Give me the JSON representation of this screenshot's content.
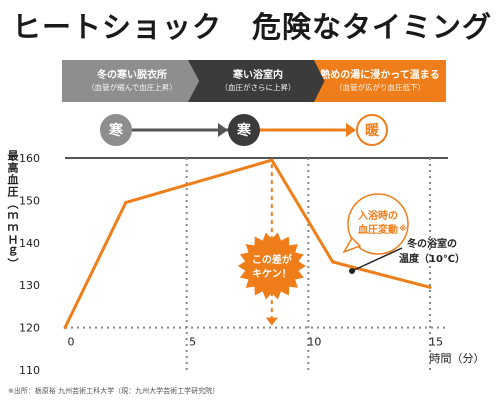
{
  "title": {
    "part1": "ヒートショック",
    "part2": "危険なタイミング"
  },
  "stages": [
    {
      "label": "冬の寒い脱衣所",
      "sub": "（血管が縮んで血圧上昇）",
      "temp_word": "寒",
      "color": "#8e8e8e"
    },
    {
      "label": "寒い浴室内",
      "sub": "（血圧がさらに上昇）",
      "temp_word": "寒",
      "color": "#3b3b3b"
    },
    {
      "label": "熱めの湯に浸かって温まる",
      "sub": "（血管が広がり血圧低下）",
      "temp_word": "暖",
      "color": "#ee7d1a"
    }
  ],
  "callouts": {
    "danger": "この差が\nキケン！",
    "bp_change": "入浴時の\n血圧変動",
    "bp_change_mark": "※",
    "room_temp": "冬の浴室の\n温度（10℃）"
  },
  "chart_data": {
    "type": "line",
    "title": "",
    "ylabel": "最高血圧（ｍｍＨｇ）",
    "xlabel": "時間（分）",
    "xlim": [
      0,
      15
    ],
    "ylim": [
      110,
      160
    ],
    "xticks": [
      0,
      5,
      10,
      15
    ],
    "yticks": [
      110,
      120,
      130,
      140,
      150,
      160
    ],
    "grid": "dotted verticals at 5, 10, 15; dotted horizontal at 120; top line at 160",
    "series": [
      {
        "color": "#ee7d1a",
        "points": [
          [
            0,
            120
          ],
          [
            2.5,
            149.5
          ],
          [
            8.5,
            159.5
          ],
          [
            11,
            135.5
          ],
          [
            15,
            129.5
          ]
        ]
      }
    ],
    "danger_span": {
      "x": 8.5,
      "from": 159.5,
      "to": 120
    }
  },
  "footnote": "※出所：栃原裕 九州芸術工科大学（現：九州大学芸術工学研究院）"
}
